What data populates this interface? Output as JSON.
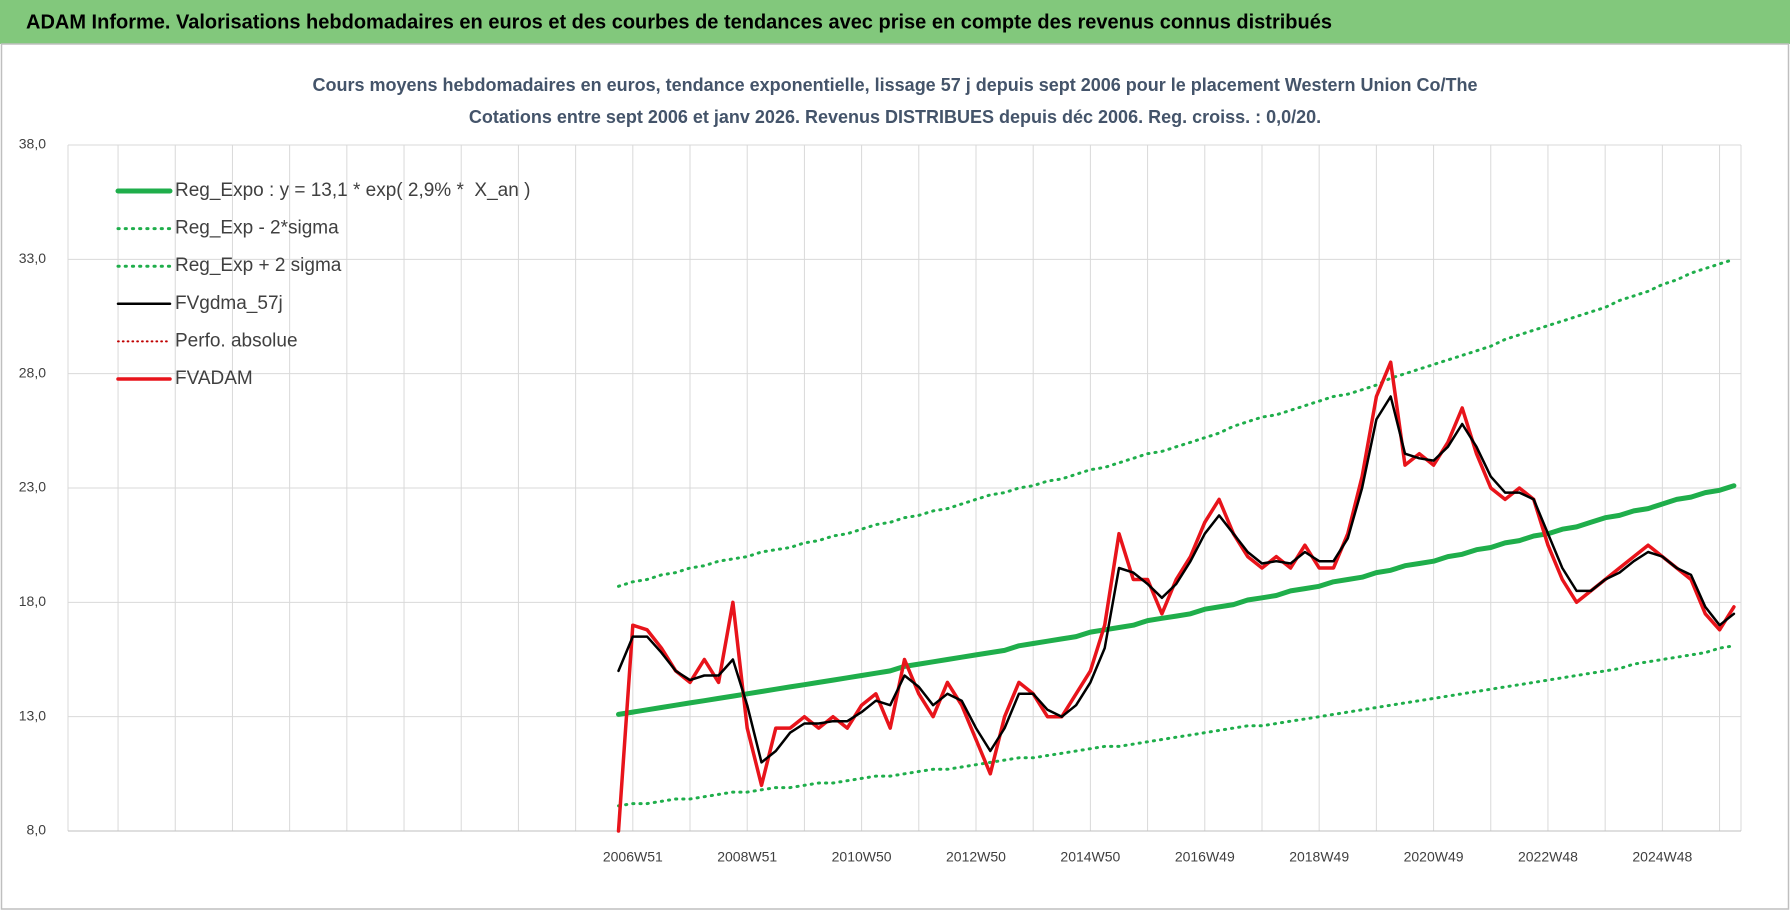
{
  "header": {
    "title": "ADAM Informe. Valorisations hebdomadaires en euros et des courbes de tendances avec prise en compte des revenus connus distribués"
  },
  "chart_data": {
    "type": "line",
    "title": "Cours moyens hebdomadaires en euros, tendance exponentielle, lissage 57 j depuis sept 2006 pour le placement Western Union Co/The",
    "subtitle": "Cotations entre sept 2006 et janv 2026. Revenus DISTRIBUES depuis déc 2006. Reg. croiss. : 0,0/20.",
    "ylim": [
      8,
      38
    ],
    "yticks": [
      {
        "value": 8,
        "label": "8,0"
      },
      {
        "value": 13,
        "label": "13,0"
      },
      {
        "value": 18,
        "label": "18,0"
      },
      {
        "value": 23,
        "label": "23,0"
      },
      {
        "value": 28,
        "label": "28,0"
      },
      {
        "value": 33,
        "label": "33,0"
      },
      {
        "value": 38,
        "label": "38,0"
      }
    ],
    "grid": true,
    "legend": "top-left",
    "categories": [
      null,
      null,
      null,
      null,
      null,
      null,
      null,
      null,
      null,
      null,
      null,
      null,
      null,
      null,
      null,
      null,
      null,
      null,
      null,
      null,
      null,
      null,
      null,
      null,
      null,
      null,
      null,
      null,
      null,
      null,
      null,
      null,
      null,
      null,
      null,
      null,
      null,
      null,
      null,
      "2006W51",
      null,
      null,
      null,
      null,
      null,
      null,
      null,
      "2008W51",
      null,
      null,
      null,
      null,
      null,
      null,
      null,
      "2010W50",
      null,
      null,
      null,
      null,
      null,
      null,
      null,
      "2012W50",
      null,
      null,
      null,
      null,
      null,
      null,
      null,
      "2014W50",
      null,
      null,
      null,
      null,
      null,
      null,
      null,
      "2016W49",
      null,
      null,
      null,
      null,
      null,
      null,
      null,
      "2018W49",
      null,
      null,
      null,
      null,
      null,
      null,
      null,
      "2020W49",
      null,
      null,
      null,
      null,
      null,
      null,
      null,
      "2022W48",
      null,
      null,
      null,
      null,
      null,
      null,
      null,
      "2024W48",
      null,
      null,
      null,
      null,
      null
    ],
    "series": [
      {
        "name": "Reg_Expo : y = 13,1 * exp( 2,9% *  X_an )",
        "color": "#1fae4b",
        "line_style": "solid",
        "line_width": 5,
        "values": [
          null,
          null,
          null,
          null,
          null,
          null,
          null,
          null,
          null,
          null,
          null,
          null,
          null,
          null,
          null,
          null,
          null,
          null,
          null,
          null,
          null,
          null,
          null,
          null,
          null,
          null,
          null,
          null,
          null,
          null,
          null,
          null,
          null,
          null,
          null,
          null,
          null,
          null,
          13.1,
          13.2,
          13.3,
          13.4,
          13.5,
          13.6,
          13.7,
          13.8,
          13.9,
          14.0,
          14.1,
          14.2,
          14.3,
          14.4,
          14.5,
          14.6,
          14.7,
          14.8,
          14.9,
          15.0,
          15.2,
          15.3,
          15.4,
          15.5,
          15.6,
          15.7,
          15.8,
          15.9,
          16.1,
          16.2,
          16.3,
          16.4,
          16.5,
          16.7,
          16.8,
          16.9,
          17.0,
          17.2,
          17.3,
          17.4,
          17.5,
          17.7,
          17.8,
          17.9,
          18.1,
          18.2,
          18.3,
          18.5,
          18.6,
          18.7,
          18.9,
          19.0,
          19.1,
          19.3,
          19.4,
          19.6,
          19.7,
          19.8,
          20.0,
          20.1,
          20.3,
          20.4,
          20.6,
          20.7,
          20.9,
          21.0,
          21.2,
          21.3,
          21.5,
          21.7,
          21.8,
          22.0,
          22.1,
          22.3,
          22.5,
          22.6,
          22.8,
          22.9,
          23.1
        ]
      },
      {
        "name": "Reg_Exp - 2*sigma",
        "color": "#1fae4b",
        "line_style": "dotted",
        "line_width": 3,
        "values": [
          null,
          null,
          null,
          null,
          null,
          null,
          null,
          null,
          null,
          null,
          null,
          null,
          null,
          null,
          null,
          null,
          null,
          null,
          null,
          null,
          null,
          null,
          null,
          null,
          null,
          null,
          null,
          null,
          null,
          null,
          null,
          null,
          null,
          null,
          null,
          null,
          null,
          null,
          9.1,
          9.2,
          9.2,
          9.3,
          9.4,
          9.4,
          9.5,
          9.6,
          9.7,
          9.7,
          9.8,
          9.9,
          9.9,
          10.0,
          10.1,
          10.1,
          10.2,
          10.3,
          10.4,
          10.4,
          10.5,
          10.6,
          10.7,
          10.7,
          10.8,
          10.9,
          11.0,
          11.1,
          11.2,
          11.2,
          11.3,
          11.4,
          11.5,
          11.6,
          11.7,
          11.7,
          11.8,
          11.9,
          12.0,
          12.1,
          12.2,
          12.3,
          12.4,
          12.5,
          12.6,
          12.6,
          12.7,
          12.8,
          12.9,
          13.0,
          13.1,
          13.2,
          13.3,
          13.4,
          13.5,
          13.6,
          13.7,
          13.8,
          13.9,
          14.0,
          14.1,
          14.2,
          14.3,
          14.4,
          14.5,
          14.6,
          14.7,
          14.8,
          14.9,
          15.0,
          15.1,
          15.3,
          15.4,
          15.5,
          15.6,
          15.7,
          15.8,
          16.0,
          16.1
        ]
      },
      {
        "name": "Reg_Exp + 2 sigma",
        "color": "#1fae4b",
        "line_style": "dotted",
        "line_width": 3,
        "values": [
          null,
          null,
          null,
          null,
          null,
          null,
          null,
          null,
          null,
          null,
          null,
          null,
          null,
          null,
          null,
          null,
          null,
          null,
          null,
          null,
          null,
          null,
          null,
          null,
          null,
          null,
          null,
          null,
          null,
          null,
          null,
          null,
          null,
          null,
          null,
          null,
          null,
          null,
          18.7,
          18.9,
          19.0,
          19.2,
          19.3,
          19.5,
          19.6,
          19.8,
          19.9,
          20.0,
          20.2,
          20.3,
          20.4,
          20.6,
          20.7,
          20.9,
          21.0,
          21.2,
          21.4,
          21.5,
          21.7,
          21.8,
          22.0,
          22.1,
          22.3,
          22.5,
          22.7,
          22.8,
          23.0,
          23.1,
          23.3,
          23.4,
          23.6,
          23.8,
          23.9,
          24.1,
          24.3,
          24.5,
          24.6,
          24.8,
          25.0,
          25.2,
          25.4,
          25.7,
          25.9,
          26.1,
          26.2,
          26.4,
          26.6,
          26.8,
          27.0,
          27.1,
          27.3,
          27.5,
          27.8,
          28.0,
          28.2,
          28.4,
          28.6,
          28.8,
          29.0,
          29.2,
          29.5,
          29.7,
          29.9,
          30.1,
          30.3,
          30.5,
          30.7,
          30.9,
          31.2,
          31.4,
          31.6,
          31.9,
          32.1,
          32.4,
          32.6,
          32.8,
          33.0
        ]
      },
      {
        "name": "FVgdma_57j",
        "color": "#000000",
        "line_style": "solid",
        "line_width": 2.5,
        "values": [
          null,
          null,
          null,
          null,
          null,
          null,
          null,
          null,
          null,
          null,
          null,
          null,
          null,
          null,
          null,
          null,
          null,
          null,
          null,
          null,
          null,
          null,
          null,
          null,
          null,
          null,
          null,
          null,
          null,
          null,
          null,
          null,
          null,
          null,
          null,
          null,
          null,
          null,
          15.0,
          16.5,
          16.5,
          15.8,
          15.0,
          14.6,
          14.8,
          14.8,
          15.5,
          13.5,
          11.0,
          11.5,
          12.3,
          12.7,
          12.7,
          12.8,
          12.8,
          13.2,
          13.7,
          13.5,
          14.8,
          14.3,
          13.5,
          14.0,
          13.7,
          12.5,
          11.5,
          12.5,
          14.0,
          14.0,
          13.3,
          13.0,
          13.5,
          14.5,
          16.0,
          19.5,
          19.3,
          18.8,
          18.2,
          18.8,
          19.8,
          21.0,
          21.8,
          21.0,
          20.2,
          19.7,
          19.8,
          19.7,
          20.2,
          19.8,
          19.8,
          20.8,
          23.0,
          26.0,
          27.0,
          24.5,
          24.3,
          24.2,
          24.8,
          25.8,
          24.8,
          23.5,
          22.8,
          22.8,
          22.5,
          21.0,
          19.5,
          18.5,
          18.5,
          19.0,
          19.3,
          19.8,
          20.2,
          20.0,
          19.5,
          19.2,
          17.8,
          17.0,
          17.5
        ]
      },
      {
        "name": "Perfo. absolue",
        "color": "#c00000",
        "line_style": "dotted",
        "line_width": 2,
        "values": [
          null,
          null,
          null,
          null,
          null,
          null,
          null,
          null,
          null,
          null,
          null,
          null,
          null,
          null,
          null,
          null,
          null,
          null,
          null,
          null,
          null,
          null,
          null,
          null,
          null,
          null,
          null,
          null,
          null,
          null,
          null,
          null,
          null,
          null,
          null,
          null,
          null,
          null,
          null,
          null,
          null,
          null,
          null,
          null,
          null,
          null,
          null,
          null,
          null,
          null,
          null,
          null,
          null,
          null,
          null,
          null,
          null,
          null,
          null,
          null,
          null,
          null,
          null,
          null,
          null,
          null,
          null,
          null,
          null,
          null,
          null,
          null,
          null,
          null,
          null,
          null,
          null,
          null,
          null,
          null,
          null,
          null,
          null,
          null,
          null,
          null,
          null,
          null,
          null,
          null,
          null,
          null,
          null,
          null,
          null,
          null,
          null,
          null,
          null,
          null,
          null,
          null,
          null,
          null,
          null,
          null,
          null,
          null,
          null,
          null,
          null,
          null,
          null,
          null,
          null,
          null,
          null
        ]
      },
      {
        "name": "FVADAM",
        "color": "#e8141b",
        "line_style": "solid",
        "line_width": 3.5,
        "values": [
          null,
          null,
          null,
          null,
          null,
          null,
          null,
          null,
          null,
          null,
          null,
          null,
          null,
          null,
          null,
          null,
          null,
          null,
          null,
          null,
          null,
          null,
          null,
          null,
          null,
          null,
          null,
          null,
          null,
          null,
          null,
          null,
          null,
          null,
          null,
          null,
          null,
          null,
          8.0,
          17.0,
          16.8,
          16.0,
          15.0,
          14.5,
          15.5,
          14.5,
          18.0,
          12.5,
          10.0,
          12.5,
          12.5,
          13.0,
          12.5,
          13.0,
          12.5,
          13.5,
          14.0,
          12.5,
          15.5,
          14.0,
          13.0,
          14.5,
          13.5,
          12.0,
          10.5,
          13.0,
          14.5,
          14.0,
          13.0,
          13.0,
          14.0,
          15.0,
          17.0,
          21.0,
          19.0,
          19.0,
          17.5,
          19.0,
          20.0,
          21.5,
          22.5,
          21.0,
          20.0,
          19.5,
          20.0,
          19.5,
          20.5,
          19.5,
          19.5,
          21.0,
          23.5,
          27.0,
          28.5,
          24.0,
          24.5,
          24.0,
          25.0,
          26.5,
          24.5,
          23.0,
          22.5,
          23.0,
          22.5,
          20.5,
          19.0,
          18.0,
          18.5,
          19.0,
          19.5,
          20.0,
          20.5,
          20.0,
          19.5,
          19.0,
          17.5,
          16.8,
          17.8
        ]
      }
    ]
  }
}
